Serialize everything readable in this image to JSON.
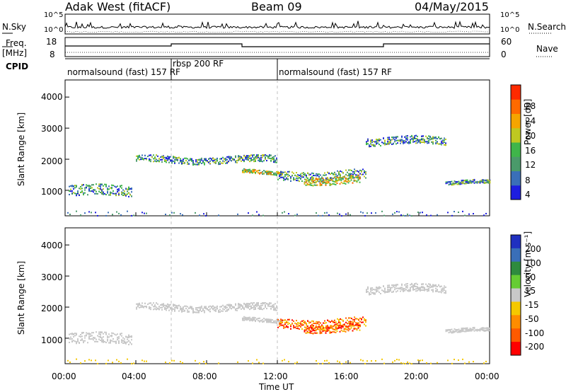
{
  "header": {
    "radar": "Adak West (fitACF)",
    "beam": "Beam 09",
    "date": "04/May/2015"
  },
  "left_labels": {
    "nsky": "N.Sky",
    "freq": "Freq.",
    "freq_unit": "[MHz]",
    "cpid": "CPID"
  },
  "right_labels": {
    "nsearch": "N.Search",
    "nave": "Nave"
  },
  "noise_axis": {
    "left_ticks": [
      "10^5",
      "10^0"
    ],
    "right_ticks": [
      "10^5",
      "10^0"
    ]
  },
  "freq_axis": {
    "left_ticks": [
      "18",
      "8"
    ],
    "right_ticks": [
      "60",
      "0"
    ]
  },
  "cpid_segments": [
    {
      "label": "normalsound (fast) 157 RF",
      "start_hour": 0,
      "end_hour": 6
    },
    {
      "label": "rbsp 200 RF",
      "start_hour": 6,
      "end_hour": 12
    },
    {
      "label": "normalsound (fast) 157 RF",
      "start_hour": 12,
      "end_hour": 24
    }
  ],
  "colors": {
    "power_scale": [
      "#1e1ee0",
      "#3a6fb8",
      "#4a9a6a",
      "#3fb54a",
      "#bfc820",
      "#f5a500",
      "#ff6a00",
      "#ff2a00"
    ],
    "velocity_scale": [
      "#2030c0",
      "#3a6fb8",
      "#2e8b3e",
      "#66cc33",
      "#c8c8c8",
      "#f5c800",
      "#ff8c00",
      "#ff5a00",
      "#ff0000"
    ]
  },
  "chart_data": [
    {
      "type": "heatmap",
      "title": "",
      "xlabel": "",
      "ylabel": "Slant Range [km]",
      "xlim": [
        0,
        24
      ],
      "ylim": [
        180,
        4550
      ],
      "y_ticks": [
        "1000",
        "2000",
        "3000",
        "4000"
      ],
      "colorbar": {
        "label": "Power [dB]",
        "ticks": [
          "4",
          "8",
          "12",
          "16",
          "20",
          "24",
          "28"
        ],
        "range": [
          0,
          30
        ]
      },
      "scatter_bands": [
        {
          "name": "",
          "x_start": 0.2,
          "x_end": 3.8,
          "y_center": 1000,
          "thickness": 350
        },
        {
          "name": "",
          "x_start": 4.0,
          "x_end": 12.0,
          "y_center": 2000,
          "thickness": 220
        },
        {
          "name": "",
          "x_start": 10.0,
          "x_end": 12.3,
          "y_center": 1600,
          "thickness": 120
        },
        {
          "name": "",
          "x_start": 12.0,
          "x_end": 17.0,
          "y_center": 1500,
          "thickness": 300
        },
        {
          "name": "",
          "x_start": 13.5,
          "x_end": 16.7,
          "y_center": 1350,
          "thickness": 250
        },
        {
          "name": "",
          "x_start": 17.0,
          "x_end": 21.5,
          "y_center": 2600,
          "thickness": 250
        },
        {
          "name": "",
          "x_start": 21.5,
          "x_end": 24.0,
          "y_center": 1250,
          "thickness": 120
        }
      ]
    },
    {
      "type": "heatmap",
      "title": "",
      "xlabel": "Time UT",
      "ylabel": "Slant Range [km]",
      "xlim": [
        0,
        24
      ],
      "ylim": [
        180,
        4550
      ],
      "x_ticks": [
        "00:00",
        "04:00",
        "08:00",
        "12:00",
        "16:00",
        "20:00",
        "00:00"
      ],
      "y_ticks": [
        "1000",
        "2000",
        "3000",
        "4000"
      ],
      "colorbar": {
        "label": "Velocity [m s⁻¹]",
        "ticks": [
          "200",
          "100",
          "50",
          "15",
          "-15",
          "-50",
          "-100",
          "-200"
        ],
        "range": [
          -250,
          250
        ]
      }
    }
  ]
}
